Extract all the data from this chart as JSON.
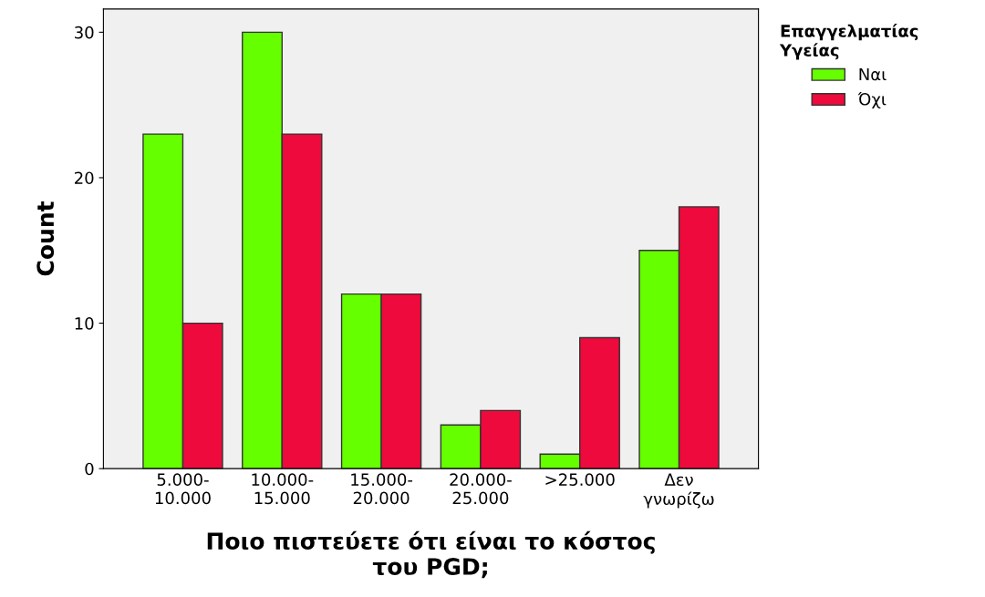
{
  "chart_data": {
    "type": "bar",
    "xlabel": "Ποιο πιστεύετε ότι είναι το κόστος\nτου PGD;",
    "ylabel": "Count",
    "legend_title": "Επαγγελματίας\nΥγείας",
    "categories": [
      "5.000-\n10.000",
      "10.000-\n15.000",
      "15.000-\n20.000",
      "20.000-\n25.000",
      ">25.000",
      "Δεν\nγνωρίζω"
    ],
    "series": [
      {
        "name": "Ναι",
        "color": "#66ff00",
        "values": [
          23,
          30,
          12,
          3,
          1,
          15
        ]
      },
      {
        "name": "Όχι",
        "color": "#ee0a3c",
        "values": [
          10,
          23,
          12,
          4,
          9,
          18
        ]
      }
    ],
    "ylim": [
      0,
      31.6
    ],
    "yticks": [
      0,
      10,
      20,
      30
    ],
    "grid": false,
    "legend": "top right"
  }
}
